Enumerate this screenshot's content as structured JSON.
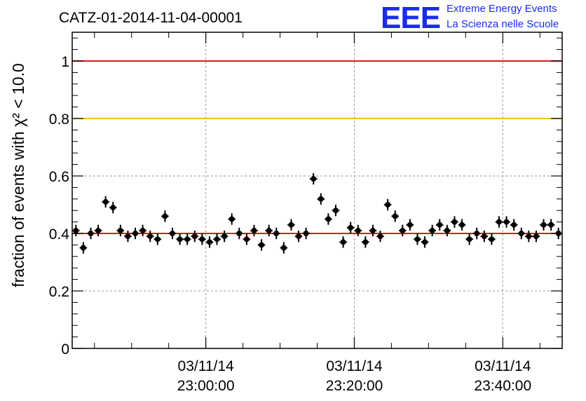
{
  "chart_data": {
    "type": "scatter",
    "title": "CATZ-01-2014-11-04-00001",
    "ylabel": "fraction of events with χ² < 10.0",
    "xlabel": "",
    "ylim": [
      0,
      1.1
    ],
    "xlim": [
      "03/11/14 22:42:00",
      "03/11/14 23:48:00"
    ],
    "x_ticks": [
      {
        "line1": "03/11/14",
        "line2": "23:00:00"
      },
      {
        "line1": "03/11/14",
        "line2": "23:20:00"
      },
      {
        "line1": "03/11/14",
        "line2": "23:40:00"
      }
    ],
    "y_ticks": [
      "0",
      "0.2",
      "0.4",
      "0.6",
      "0.8",
      "1"
    ],
    "reference_lines": [
      {
        "y": 1.0,
        "color": "#e8151b"
      },
      {
        "y": 0.8,
        "color": "#f5c000"
      },
      {
        "y": 0.4,
        "color": "#e8151b"
      }
    ],
    "grid": true,
    "marker_color": "#000000",
    "y_error": 0.02,
    "x": [
      "22:42:30",
      "22:43:30",
      "22:44:30",
      "22:45:30",
      "22:46:30",
      "22:47:30",
      "22:48:30",
      "22:49:30",
      "22:50:30",
      "22:51:30",
      "22:52:30",
      "22:53:30",
      "22:54:30",
      "22:55:30",
      "22:56:30",
      "22:57:30",
      "22:58:30",
      "22:59:30",
      "23:00:30",
      "23:01:30",
      "23:02:30",
      "23:03:30",
      "23:04:30",
      "23:05:30",
      "23:06:30",
      "23:07:30",
      "23:08:30",
      "23:09:30",
      "23:10:30",
      "23:11:30",
      "23:12:30",
      "23:13:30",
      "23:14:30",
      "23:15:30",
      "23:16:30",
      "23:17:30",
      "23:18:30",
      "23:19:30",
      "23:20:30",
      "23:21:30",
      "23:22:30",
      "23:23:30",
      "23:24:30",
      "23:25:30",
      "23:26:30",
      "23:27:30",
      "23:28:30",
      "23:29:30",
      "23:30:30",
      "23:31:30",
      "23:32:30",
      "23:33:30",
      "23:34:30",
      "23:35:30",
      "23:36:30",
      "23:37:30",
      "23:38:30",
      "23:39:30",
      "23:40:30",
      "23:41:30",
      "23:42:30",
      "23:43:30",
      "23:44:30",
      "23:45:30",
      "23:46:30",
      "23:47:30"
    ],
    "values": [
      0.41,
      0.35,
      0.4,
      0.41,
      0.51,
      0.49,
      0.41,
      0.39,
      0.4,
      0.41,
      0.39,
      0.38,
      0.46,
      0.4,
      0.38,
      0.38,
      0.39,
      0.38,
      0.37,
      0.38,
      0.39,
      0.45,
      0.4,
      0.38,
      0.41,
      0.36,
      0.41,
      0.4,
      0.35,
      0.43,
      0.39,
      0.4,
      0.59,
      0.52,
      0.45,
      0.48,
      0.37,
      0.42,
      0.41,
      0.37,
      0.41,
      0.39,
      0.5,
      0.46,
      0.41,
      0.43,
      0.38,
      0.37,
      0.41,
      0.43,
      0.41,
      0.44,
      0.43,
      0.38,
      0.4,
      0.39,
      0.38,
      0.44,
      0.44,
      0.43,
      0.4,
      0.39,
      0.39,
      0.43,
      0.43,
      0.4
    ]
  },
  "logo": {
    "mark": "EEE",
    "line1": "Extreme Energy Events",
    "line2": "La Scienza nelle Scuole"
  }
}
